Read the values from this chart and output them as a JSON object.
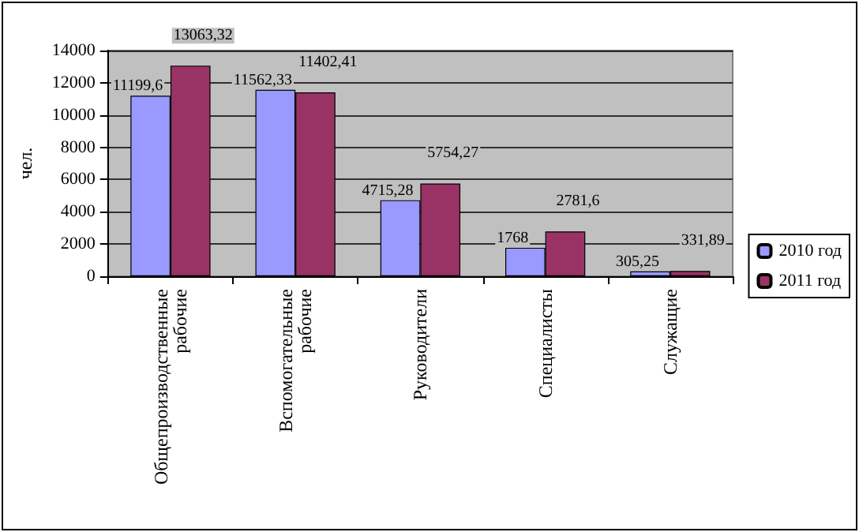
{
  "chart_data": {
    "type": "bar",
    "ylabel": "чел.",
    "categories": [
      "Общепроизводственные рабочие",
      "Вспомогательные рабочие",
      "Руководители",
      "Специалисты",
      "Служащие"
    ],
    "series": [
      {
        "name": "2010 год",
        "color": "#9999ff",
        "values": [
          11199.6,
          11562.33,
          4715.28,
          1768,
          305.25
        ],
        "value_labels": [
          "11199,6",
          "11562,33",
          "4715,28",
          "1768",
          "305,25"
        ]
      },
      {
        "name": "2011 год",
        "color": "#993366",
        "values": [
          13063.32,
          11402.41,
          5754.27,
          2781.6,
          331.89
        ],
        "value_labels": [
          "13063,32",
          "11402,41",
          "5754,27",
          "2781,6",
          "331,89"
        ]
      }
    ],
    "ylim": [
      0,
      14000
    ],
    "yticks": [
      0,
      2000,
      4000,
      6000,
      8000,
      10000,
      12000,
      14000
    ],
    "grid": "y",
    "legend": "right"
  }
}
